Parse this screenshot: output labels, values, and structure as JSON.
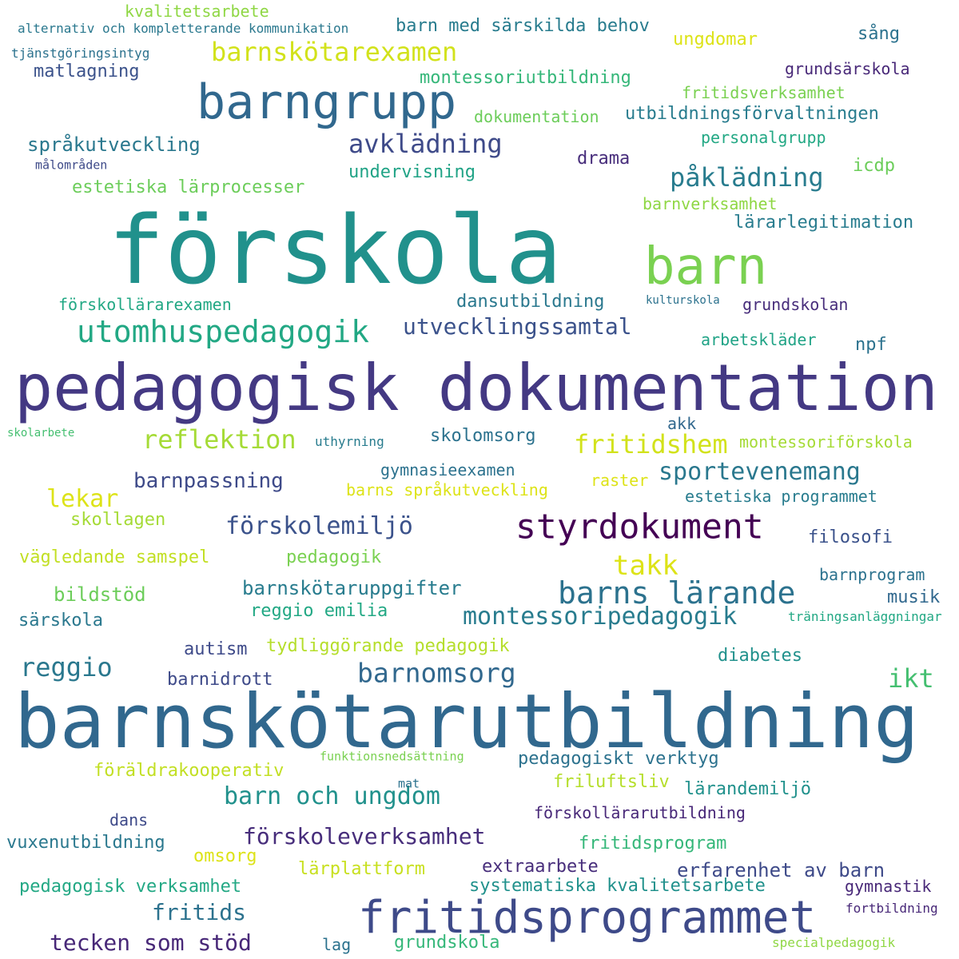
{
  "words": [
    {
      "text": "förskola",
      "color": "#21918c"
    },
    {
      "text": "barnskötarutbildning",
      "color": "#31688e"
    },
    {
      "text": "pedagogisk dokumentation",
      "color": "#443983"
    },
    {
      "text": "barngrupp",
      "color": "#31688e"
    },
    {
      "text": "barn",
      "color": "#7ad151"
    },
    {
      "text": "fritidsprogrammet",
      "color": "#3e4a89"
    },
    {
      "text": "styrdokument",
      "color": "#440154"
    },
    {
      "text": "barns lärande",
      "color": "#2c728e"
    },
    {
      "text": "utomhuspedagogik",
      "color": "#22a884"
    },
    {
      "text": "barnskötarexamen",
      "color": "#d2e21b"
    },
    {
      "text": "avklädning",
      "color": "#3e4a89"
    },
    {
      "text": "påklädning",
      "color": "#287c8e"
    },
    {
      "text": "utvecklingssamtal",
      "color": "#3b528b"
    },
    {
      "text": "reflektion",
      "color": "#a5db36"
    },
    {
      "text": "fritidshem",
      "color": "#d2e21b"
    },
    {
      "text": "sportevenemang",
      "color": "#2a788e"
    },
    {
      "text": "förskolemiljö",
      "color": "#3b528b"
    },
    {
      "text": "montessoripedagogik",
      "color": "#287c8e"
    },
    {
      "text": "barn och ungdom",
      "color": "#21918c"
    },
    {
      "text": "barnomsorg",
      "color": "#31688e"
    },
    {
      "text": "takk",
      "color": "#dde318"
    },
    {
      "text": "reggio",
      "color": "#2a788e"
    },
    {
      "text": "ikt",
      "color": "#44bf70"
    },
    {
      "text": "förskoleverksamhet",
      "color": "#472d7b"
    },
    {
      "text": "tecken som stöd",
      "color": "#482878"
    },
    {
      "text": "fritids",
      "color": "#2c728e"
    },
    {
      "text": "språkutveckling",
      "color": "#2a788e"
    },
    {
      "text": "barnpassning",
      "color": "#3e4a89"
    },
    {
      "text": "lekar",
      "color": "#dde318"
    },
    {
      "text": "skolomsorg",
      "color": "#2c728e"
    },
    {
      "text": "barn med särskilda behov",
      "color": "#287c8e"
    },
    {
      "text": "kvalitetsarbete",
      "color": "#8fd744"
    },
    {
      "text": "alternativ och kompletterande kommunikation",
      "color": "#2a788e"
    },
    {
      "text": "tjänstgöringsintyg",
      "color": "#2c728e"
    },
    {
      "text": "ungdomar",
      "color": "#dde318"
    },
    {
      "text": "sång",
      "color": "#2c728e"
    },
    {
      "text": "grundsärskola",
      "color": "#482878"
    },
    {
      "text": "matlagning",
      "color": "#3b528b"
    },
    {
      "text": "montessoriutbildning",
      "color": "#35b779"
    },
    {
      "text": "fritidsverksamhet",
      "color": "#7ad151"
    },
    {
      "text": "dokumentation",
      "color": "#6ccd5a"
    },
    {
      "text": "utbildningsförvaltningen",
      "color": "#287c8e"
    },
    {
      "text": "personalgrupp",
      "color": "#22a884"
    },
    {
      "text": "drama",
      "color": "#472d7b"
    },
    {
      "text": "undervisning",
      "color": "#20a386"
    },
    {
      "text": "icdp",
      "color": "#6ccd5a"
    },
    {
      "text": "målområden",
      "color": "#3e4a89"
    },
    {
      "text": "estetiska lärprocesser",
      "color": "#6ccd5a"
    },
    {
      "text": "barnverksamhet",
      "color": "#8fd744"
    },
    {
      "text": "lärarlegitimation",
      "color": "#287c8e"
    },
    {
      "text": "förskollärarexamen",
      "color": "#22a884"
    },
    {
      "text": "dansutbildning",
      "color": "#2a788e"
    },
    {
      "text": "kulturskola",
      "color": "#2c728e"
    },
    {
      "text": "grundskolan",
      "color": "#472d7b"
    },
    {
      "text": "arbetskläder",
      "color": "#20a386"
    },
    {
      "text": "npf",
      "color": "#2c728e"
    },
    {
      "text": "akk",
      "color": "#31688e"
    },
    {
      "text": "skolarbete",
      "color": "#44bf70"
    },
    {
      "text": "uthyrning",
      "color": "#287c8e"
    },
    {
      "text": "montessoriförskola",
      "color": "#a5db36"
    },
    {
      "text": "gymnasieexamen",
      "color": "#2c728e"
    },
    {
      "text": "barns språkutveckling",
      "color": "#dde318"
    },
    {
      "text": "raster",
      "color": "#dde318"
    },
    {
      "text": "estetiska programmet",
      "color": "#287c8e"
    },
    {
      "text": "skollagen",
      "color": "#a5db36"
    },
    {
      "text": "filosofi",
      "color": "#3b528b"
    },
    {
      "text": "vägledande samspel",
      "color": "#c2df23"
    },
    {
      "text": "pedagogik",
      "color": "#7ad151"
    },
    {
      "text": "barnskötaruppgifter",
      "color": "#287c8e"
    },
    {
      "text": "bildstöd",
      "color": "#6ccd5a"
    },
    {
      "text": "barnprogram",
      "color": "#2c728e"
    },
    {
      "text": "musik",
      "color": "#31688e"
    },
    {
      "text": "reggio emilia",
      "color": "#22a884"
    },
    {
      "text": "särskola",
      "color": "#2a788e"
    },
    {
      "text": "träningsanläggningar",
      "color": "#22a884"
    },
    {
      "text": "autism",
      "color": "#3e4a89"
    },
    {
      "text": "tydliggörande pedagogik",
      "color": "#b5de2b"
    },
    {
      "text": "diabetes",
      "color": "#21918c"
    },
    {
      "text": "barnidrott",
      "color": "#3e4a89"
    },
    {
      "text": "funktionsnedsättning",
      "color": "#7ad151"
    },
    {
      "text": "pedagogiskt verktyg",
      "color": "#2c728e"
    },
    {
      "text": "föräldrakooperativ",
      "color": "#c2df23"
    },
    {
      "text": "friluftsliv",
      "color": "#b5de2b"
    },
    {
      "text": "mat",
      "color": "#2c728e"
    },
    {
      "text": "lärandemiljö",
      "color": "#21918c"
    },
    {
      "text": "dans",
      "color": "#3e4a89"
    },
    {
      "text": "förskollärarutbildning",
      "color": "#482878"
    },
    {
      "text": "vuxenutbildning",
      "color": "#2a788e"
    },
    {
      "text": "fritidsprogram",
      "color": "#35b779"
    },
    {
      "text": "omsorg",
      "color": "#dde318"
    },
    {
      "text": "lärplattform",
      "color": "#c8e020"
    },
    {
      "text": "extraarbete",
      "color": "#472d7b"
    },
    {
      "text": "erfarenhet av barn",
      "color": "#3e4a89"
    },
    {
      "text": "pedagogisk verksamhet",
      "color": "#22a884"
    },
    {
      "text": "systematiska kvalitetsarbete",
      "color": "#21918c"
    },
    {
      "text": "gymnastik",
      "color": "#482878"
    },
    {
      "text": "fortbildning",
      "color": "#482878"
    },
    {
      "text": "lag",
      "color": "#2c728e"
    },
    {
      "text": "grundskola",
      "color": "#35b779"
    },
    {
      "text": "specialpedagogik",
      "color": "#8fd744"
    }
  ]
}
